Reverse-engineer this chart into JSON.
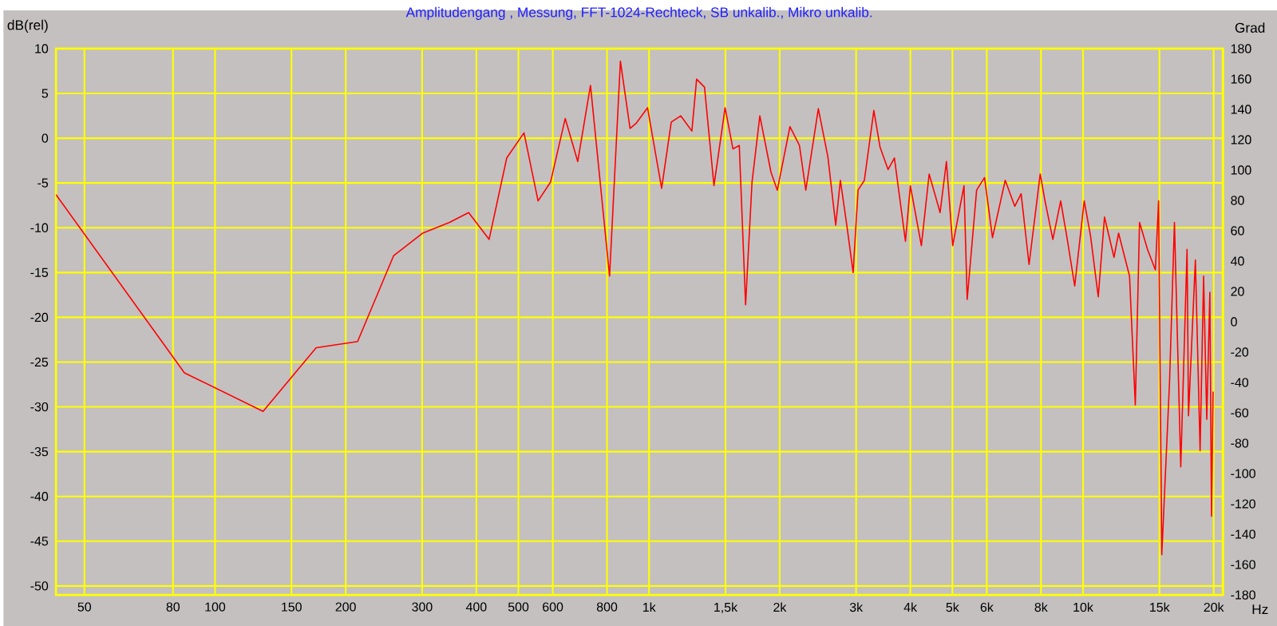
{
  "chart_data": {
    "type": "line",
    "title": "Amplitudengang , Messung, FFT-1024-Rechteck, SB unkalib., Mikro unkalib.",
    "xlabel": "Hz",
    "ylabel": "dB(rel)",
    "y2label": "Grad",
    "log": "x",
    "grid": true,
    "marker": "none",
    "line_style": "solid",
    "xlim": [
      43,
      21000
    ],
    "ylim": [
      -51,
      10
    ],
    "y2lim": [
      -180,
      180
    ],
    "xticks": [
      50,
      80,
      100,
      150,
      200,
      300,
      400,
      500,
      600,
      800,
      {
        "value": 1000,
        "label": "1k"
      },
      {
        "value": 1500,
        "label": "1,5k"
      },
      {
        "value": 2000,
        "label": "2k"
      },
      {
        "value": 3000,
        "label": "3k"
      },
      {
        "value": 4000,
        "label": "4k"
      },
      {
        "value": 5000,
        "label": "5k"
      },
      {
        "value": 6000,
        "label": "6k"
      },
      {
        "value": 8000,
        "label": "8k"
      },
      {
        "value": 10000,
        "label": "10k"
      },
      {
        "value": 15000,
        "label": "15k"
      },
      {
        "value": 20000,
        "label": "20k"
      }
    ],
    "yticks": [
      -50,
      -45,
      -40,
      -35,
      -30,
      -25,
      -20,
      -15,
      -10,
      -5,
      0,
      5,
      10
    ],
    "y2ticks": [
      -180,
      -160,
      -140,
      -120,
      -100,
      -80,
      -60,
      -40,
      -20,
      0,
      20,
      40,
      60,
      80,
      100,
      120,
      140,
      160,
      180
    ],
    "series": [
      {
        "color": "#ff0000",
        "x": [
          43,
          85,
          129,
          171,
          213,
          258,
          301,
          347,
          384,
          428,
          470,
          515,
          555,
          593,
          641,
          685,
          733,
          811,
          859,
          904,
          935,
          992,
          1069,
          1125,
          1183,
          1255,
          1287,
          1342,
          1411,
          1497,
          1561,
          1614,
          1669,
          1727,
          1800,
          1910,
          1975,
          2112,
          2221,
          2297,
          2455,
          2583,
          2692,
          2760,
          2855,
          2953,
          3031,
          3134,
          3296,
          3406,
          3554,
          3676,
          3898,
          4000,
          4241,
          4420,
          4684,
          4844,
          5008,
          5317,
          5408,
          5686,
          5929,
          6185,
          6617,
          6962,
          7200,
          7510,
          7968,
          8172,
          8520,
          8881,
          9184,
          9567,
          10062,
          10405,
          10840,
          11206,
          11784,
          12075,
          12797,
          13195,
          13495,
          14075,
          14678,
          14930,
          15186,
          15828,
          16240,
          16794,
          17366,
          17500,
          18150,
          18610,
          18960,
          19280,
          19600,
          19770,
          19940
        ],
        "values": [
          -6.3,
          -26.2,
          -30.5,
          -23.4,
          -22.7,
          -13.1,
          -10.6,
          -9.4,
          -8.3,
          -11.3,
          -2.2,
          0.6,
          -7.0,
          -4.9,
          2.2,
          -2.6,
          5.9,
          -15.4,
          8.6,
          1.1,
          1.7,
          3.4,
          -5.6,
          1.8,
          2.5,
          0.8,
          6.6,
          5.7,
          -5.3,
          3.4,
          -1.2,
          -0.8,
          -18.6,
          -4.9,
          2.5,
          -3.8,
          -5.8,
          1.3,
          -0.8,
          -5.8,
          3.3,
          -2.1,
          -9.7,
          -4.7,
          -9.7,
          -15.0,
          -5.8,
          -4.7,
          3.1,
          -1.0,
          -3.5,
          -2.2,
          -11.5,
          -5.3,
          -12.0,
          -4.0,
          -8.3,
          -2.6,
          -12.0,
          -5.3,
          -18.0,
          -5.8,
          -4.4,
          -11.1,
          -4.7,
          -7.6,
          -6.2,
          -14.1,
          -4.0,
          -7.0,
          -11.3,
          -7.0,
          -11.1,
          -16.5,
          -7.0,
          -10.9,
          -17.7,
          -8.8,
          -13.3,
          -10.6,
          -15.4,
          -29.8,
          -9.4,
          -12.4,
          -14.7,
          -7.0,
          -46.5,
          -27.1,
          -9.4,
          -36.7,
          -12.4,
          -31.0,
          -13.6,
          -34.9,
          -15.4,
          -31.4,
          -17.2,
          -42.2,
          -28.3
        ]
      }
    ]
  }
}
